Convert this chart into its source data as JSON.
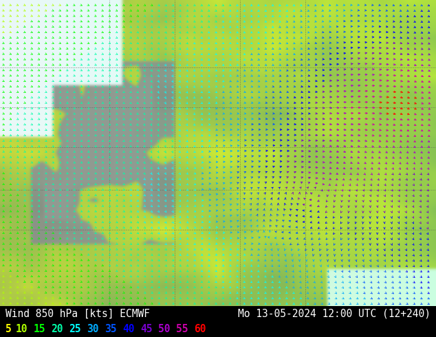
{
  "title_left": "Wind 850 hPa [kts] ECMWF",
  "title_right": "Mo 13-05-2024 12:00 UTC (12+240)",
  "legend_values": [
    "5",
    "10",
    "15",
    "20",
    "25",
    "30",
    "35",
    "40",
    "45",
    "50",
    "55",
    "60"
  ],
  "legend_colors": [
    "#ffff00",
    "#aeff00",
    "#00ff00",
    "#00ffaa",
    "#00ffff",
    "#00aaff",
    "#0055ff",
    "#0000ff",
    "#7700cc",
    "#aa00cc",
    "#cc00aa",
    "#ff0000"
  ],
  "bg_color": "#000000",
  "text_color": "#ffffff",
  "title_fontsize": 10.5,
  "legend_fontsize": 10.5,
  "fig_width": 6.34,
  "fig_height": 4.9,
  "dpi": 100
}
